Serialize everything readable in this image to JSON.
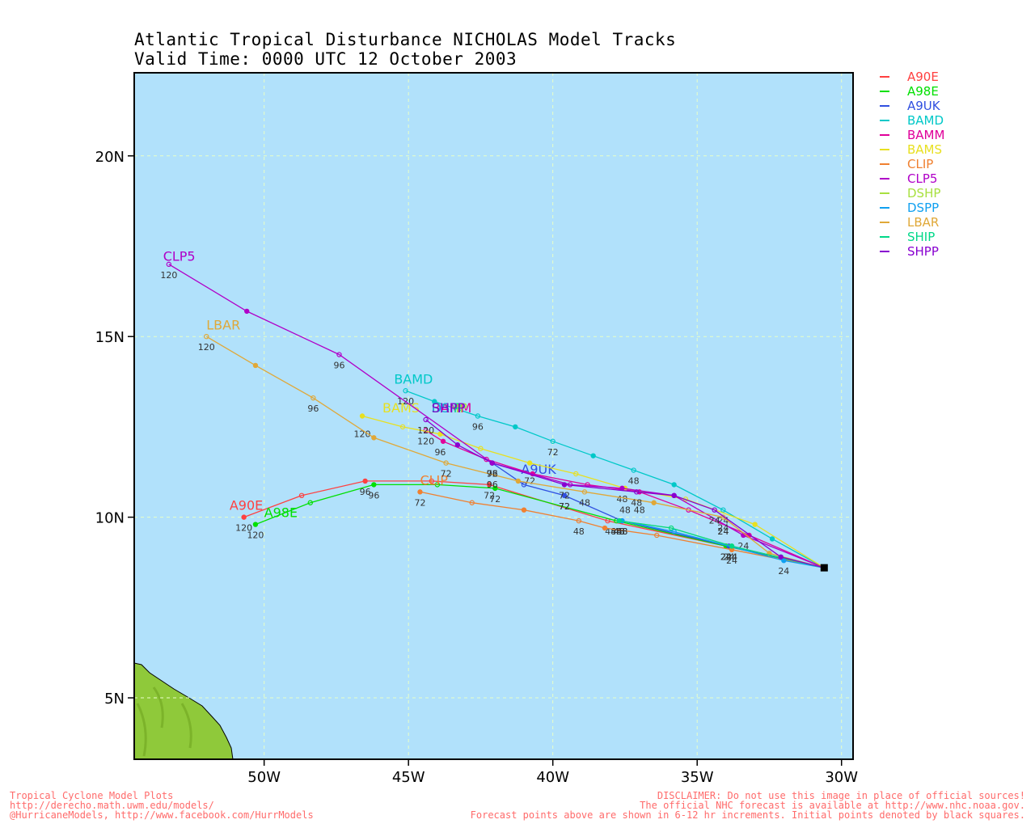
{
  "title": {
    "line1": "Atlantic Tropical Disturbance NICHOLAS Model Tracks",
    "line2": "Valid Time: 0000 UTC 12 October 2003"
  },
  "footer": {
    "left": [
      "Tropical Cyclone Model Plots",
      "http://derecho.math.uwm.edu/models/",
      "@HurricaneModels, http://www.facebook.com/HurrModels"
    ],
    "right": [
      "DISCLAIMER: Do not use this image in place of official sources!",
      "The official NHC forecast is available at http://www.nhc.noaa.gov.",
      "Forecast points above are shown in 6-12 hr increments. Initial points denoted by black squares."
    ]
  },
  "map": {
    "lon_range": [
      -54.5,
      -29.6
    ],
    "lat_range": [
      3.3,
      22.3
    ],
    "ocean_color": "#b1e1fb",
    "land_color": "#8fc93a",
    "x_ticks": [
      {
        "lon": -50,
        "label": "50W"
      },
      {
        "lon": -45,
        "label": "45W"
      },
      {
        "lon": -40,
        "label": "40W"
      },
      {
        "lon": -35,
        "label": "35W"
      },
      {
        "lon": -30,
        "label": "30W"
      }
    ],
    "y_ticks": [
      {
        "lat": 5,
        "label": "5N"
      },
      {
        "lat": 10,
        "label": "10N"
      },
      {
        "lat": 15,
        "label": "15N"
      },
      {
        "lat": 20,
        "label": "20N"
      }
    ],
    "initial_point": {
      "lon": -30.6,
      "lat": 8.6
    }
  },
  "models": [
    {
      "name": "A90E",
      "color": "#ff4040"
    },
    {
      "name": "A98E",
      "color": "#00e000"
    },
    {
      "name": "A9UK",
      "color": "#3050e0"
    },
    {
      "name": "BAMD",
      "color": "#00c8c8"
    },
    {
      "name": "BAMM",
      "color": "#e0009a"
    },
    {
      "name": "BAMS",
      "color": "#e8e020"
    },
    {
      "name": "CLIP",
      "color": "#f08030"
    },
    {
      "name": "CLP5",
      "color": "#b000c8"
    },
    {
      "name": "DSHP",
      "color": "#a8e040"
    },
    {
      "name": "DSPP",
      "color": "#10a0f0"
    },
    {
      "name": "LBAR",
      "color": "#e0a838"
    },
    {
      "name": "SHIP",
      "color": "#00d888"
    },
    {
      "name": "SHPP",
      "color": "#8800d0"
    }
  ],
  "tracks": [
    {
      "model": "A90E",
      "color": "#ff4040",
      "label_at": [
        -51.2,
        10.2
      ],
      "points": [
        [
          -30.6,
          8.6
        ],
        [
          -34.0,
          9.2
        ],
        [
          -38.1,
          9.9
        ],
        [
          -42.2,
          10.9
        ],
        [
          -44.2,
          11.0
        ],
        [
          -46.5,
          11.0
        ],
        [
          -48.7,
          10.6
        ],
        [
          -50.7,
          10.0
        ]
      ],
      "hours": [
        {
          "h": "24",
          "at": [
            -34.0,
            9.2
          ]
        },
        {
          "h": "48",
          "at": [
            -38.0,
            9.9
          ]
        },
        {
          "h": "72",
          "at": [
            -42.2,
            10.9
          ]
        },
        {
          "h": "96",
          "at": [
            -46.5,
            11.0
          ]
        },
        {
          "h": "120",
          "at": [
            -50.7,
            10.0
          ]
        }
      ]
    },
    {
      "model": "A98E",
      "color": "#00e000",
      "label_at": [
        -50.0,
        10.0
      ],
      "points": [
        [
          -30.6,
          8.6
        ],
        [
          -34.0,
          9.2
        ],
        [
          -37.8,
          9.9
        ],
        [
          -42.0,
          10.8
        ],
        [
          -44.0,
          10.9
        ],
        [
          -46.2,
          10.9
        ],
        [
          -48.4,
          10.4
        ],
        [
          -50.3,
          9.8
        ]
      ],
      "hours": [
        {
          "h": "24",
          "at": [
            -34.0,
            9.2
          ]
        },
        {
          "h": "48",
          "at": [
            -37.8,
            9.9
          ]
        },
        {
          "h": "72",
          "at": [
            -42.0,
            10.8
          ]
        },
        {
          "h": "96",
          "at": [
            -46.2,
            10.9
          ]
        },
        {
          "h": "120",
          "at": [
            -50.3,
            9.8
          ]
        }
      ]
    },
    {
      "model": "A9UK",
      "color": "#3050e0",
      "label_at": [
        -41.1,
        11.2
      ],
      "points": [
        [
          -30.6,
          8.6
        ],
        [
          -33.9,
          9.2
        ],
        [
          -37.6,
          9.9
        ],
        [
          -39.6,
          10.6
        ],
        [
          -41.0,
          10.9
        ],
        [
          -42.1,
          11.5
        ]
      ],
      "hours": [
        {
          "h": "24",
          "at": [
            -33.9,
            9.2
          ]
        },
        {
          "h": "48",
          "at": [
            -37.6,
            9.9
          ]
        },
        {
          "h": "72",
          "at": [
            -39.6,
            10.6
          ]
        },
        {
          "h": "96",
          "at": [
            -42.1,
            11.5
          ]
        }
      ]
    },
    {
      "model": "BAMD",
      "color": "#00c8c8",
      "label_at": [
        -45.5,
        13.7
      ],
      "points": [
        [
          -30.6,
          8.6
        ],
        [
          -32.4,
          9.4
        ],
        [
          -34.1,
          10.2
        ],
        [
          -35.8,
          10.9
        ],
        [
          -37.2,
          11.3
        ],
        [
          -38.6,
          11.7
        ],
        [
          -40.0,
          12.1
        ],
        [
          -41.3,
          12.5
        ],
        [
          -42.6,
          12.8
        ],
        [
          -44.1,
          13.2
        ],
        [
          -45.1,
          13.5
        ]
      ],
      "hours": [
        {
          "h": "24",
          "at": [
            -34.1,
            10.2
          ]
        },
        {
          "h": "48",
          "at": [
            -37.2,
            11.3
          ]
        },
        {
          "h": "72",
          "at": [
            -40.0,
            12.1
          ]
        },
        {
          "h": "96",
          "at": [
            -42.6,
            12.8
          ]
        },
        {
          "h": "120",
          "at": [
            -45.1,
            13.5
          ]
        }
      ]
    },
    {
      "model": "BAMM",
      "color": "#e0009a",
      "label_at": [
        -44.2,
        12.9
      ],
      "points": [
        [
          -30.6,
          8.6
        ],
        [
          -33.2,
          9.5
        ],
        [
          -35.3,
          10.2
        ],
        [
          -37.0,
          10.7
        ],
        [
          -38.8,
          10.9
        ],
        [
          -40.7,
          11.2
        ],
        [
          -42.3,
          11.6
        ],
        [
          -43.8,
          12.1
        ],
        [
          -44.4,
          12.4
        ]
      ],
      "hours": [
        {
          "h": "24",
          "at": [
            -34.1,
            9.9
          ]
        },
        {
          "h": "48",
          "at": [
            -37.0,
            10.5
          ]
        },
        {
          "h": "72",
          "at": [
            -39.6,
            10.6
          ]
        },
        {
          "h": "96",
          "at": [
            -42.1,
            11.2
          ]
        },
        {
          "h": "120",
          "at": [
            -44.4,
            12.4
          ]
        }
      ]
    },
    {
      "model": "BAMS",
      "color": "#e8e020",
      "label_at": [
        -45.9,
        12.9
      ],
      "points": [
        [
          -30.6,
          8.6
        ],
        [
          -33.0,
          9.8
        ],
        [
          -35.4,
          10.5
        ],
        [
          -37.5,
          10.8
        ],
        [
          -39.2,
          11.2
        ],
        [
          -40.8,
          11.5
        ],
        [
          -42.5,
          11.9
        ],
        [
          -43.9,
          12.3
        ],
        [
          -45.2,
          12.5
        ],
        [
          -46.6,
          12.8
        ]
      ],
      "hours": [
        {
          "h": "24",
          "at": [
            -34.1,
            9.9
          ]
        },
        {
          "h": "48",
          "at": [
            -37.5,
            10.5
          ]
        },
        {
          "h": "72",
          "at": [
            -40.8,
            11.3
          ]
        },
        {
          "h": "96",
          "at": [
            -43.9,
            12.1
          ]
        },
        {
          "h": "120",
          "at": [
            -46.6,
            12.6
          ]
        }
      ]
    },
    {
      "model": "CLIP",
      "color": "#f08030",
      "label_at": [
        -44.6,
        10.9
      ],
      "points": [
        [
          -30.6,
          8.6
        ],
        [
          -33.8,
          9.1
        ],
        [
          -36.4,
          9.5
        ],
        [
          -38.2,
          9.7
        ],
        [
          -39.1,
          9.9
        ],
        [
          -41.0,
          10.2
        ],
        [
          -42.8,
          10.4
        ],
        [
          -44.6,
          10.7
        ]
      ],
      "hours": [
        {
          "h": "24",
          "at": [
            -33.8,
            9.1
          ]
        },
        {
          "h": "48",
          "at": [
            -39.1,
            9.9
          ]
        },
        {
          "h": "72",
          "at": [
            -44.6,
            10.7
          ]
        }
      ]
    },
    {
      "model": "CLP5",
      "color": "#b000c8",
      "label_at": [
        -53.5,
        17.1
      ],
      "points": [
        [
          -30.6,
          8.6
        ],
        [
          -33.4,
          9.5
        ],
        [
          -35.8,
          10.6
        ],
        [
          -37.6,
          10.8
        ],
        [
          -39.4,
          10.9
        ],
        [
          -42.1,
          11.5
        ],
        [
          -47.4,
          14.5
        ],
        [
          -50.6,
          15.7
        ],
        [
          -53.3,
          17.0
        ]
      ],
      "hours": [
        {
          "h": "24",
          "at": [
            -33.4,
            9.5
          ]
        },
        {
          "h": "48",
          "at": [
            -37.6,
            10.8
          ]
        },
        {
          "h": "72",
          "at": [
            -42.1,
            11.5
          ]
        },
        {
          "h": "96",
          "at": [
            -47.4,
            14.5
          ]
        },
        {
          "h": "120",
          "at": [
            -53.3,
            17.0
          ]
        }
      ]
    },
    {
      "model": "DSHP",
      "color": "#a8e040",
      "label_at": [
        -44.2,
        12.9
      ],
      "points": [
        [
          -30.6,
          8.6
        ],
        [
          -33.8,
          9.2
        ],
        [
          -35.9,
          9.7
        ],
        [
          -37.7,
          9.9
        ]
      ],
      "hours": [
        {
          "h": "24",
          "at": [
            -33.8,
            9.2
          ]
        },
        {
          "h": "48",
          "at": [
            -37.7,
            9.9
          ]
        }
      ]
    },
    {
      "model": "DSPP",
      "color": "#10a0f0",
      "label_at": [
        -44.2,
        12.9
      ],
      "points": [
        [
          -30.6,
          8.6
        ],
        [
          -32.0,
          8.8
        ],
        [
          -35.8,
          9.6
        ],
        [
          -37.6,
          9.9
        ]
      ],
      "hours": [
        {
          "h": "24",
          "at": [
            -32.0,
            8.8
          ]
        },
        {
          "h": "48",
          "at": [
            -37.6,
            9.9
          ]
        }
      ]
    },
    {
      "model": "LBAR",
      "color": "#e0a838",
      "label_at": [
        -52.0,
        15.2
      ],
      "points": [
        [
          -30.6,
          8.6
        ],
        [
          -32.5,
          9.0
        ],
        [
          -34.1,
          10.0
        ],
        [
          -36.5,
          10.4
        ],
        [
          -38.9,
          10.7
        ],
        [
          -41.2,
          11.0
        ],
        [
          -43.7,
          11.5
        ],
        [
          -46.2,
          12.2
        ],
        [
          -48.3,
          13.3
        ],
        [
          -50.3,
          14.2
        ],
        [
          -52.0,
          15.0
        ]
      ],
      "hours": [
        {
          "h": "24",
          "at": [
            -34.1,
            10.0
          ]
        },
        {
          "h": "48",
          "at": [
            -38.9,
            10.7
          ]
        },
        {
          "h": "72",
          "at": [
            -43.7,
            11.5
          ]
        },
        {
          "h": "96",
          "at": [
            -48.3,
            13.3
          ]
        },
        {
          "h": "120",
          "at": [
            -52.0,
            15.0
          ]
        }
      ]
    },
    {
      "model": "SHIP",
      "color": "#00d888",
      "label_at": [
        -44.2,
        12.9
      ],
      "points": [
        [
          -30.6,
          8.6
        ],
        [
          -33.8,
          9.2
        ],
        [
          -35.9,
          9.7
        ],
        [
          -37.7,
          9.9
        ]
      ],
      "hours": [
        {
          "h": "24",
          "at": [
            -33.8,
            9.2
          ]
        },
        {
          "h": "48",
          "at": [
            -37.7,
            9.9
          ]
        }
      ]
    },
    {
      "model": "SHPP",
      "color": "#8800d0",
      "label_at": [
        -44.2,
        12.9
      ],
      "points": [
        [
          -30.6,
          8.6
        ],
        [
          -32.1,
          8.9
        ],
        [
          -34.4,
          10.2
        ],
        [
          -35.8,
          10.6
        ],
        [
          -37.1,
          10.7
        ],
        [
          -39.6,
          10.9
        ],
        [
          -42.1,
          11.5
        ],
        [
          -43.3,
          12.0
        ],
        [
          -44.4,
          12.7
        ]
      ],
      "hours": [
        {
          "h": "24",
          "at": [
            -34.4,
            10.2
          ]
        },
        {
          "h": "48",
          "at": [
            -37.1,
            10.7
          ]
        },
        {
          "h": "72",
          "at": [
            -39.6,
            10.9
          ]
        },
        {
          "h": "96",
          "at": [
            -42.1,
            11.5
          ]
        },
        {
          "h": "120",
          "at": [
            -44.4,
            12.7
          ]
        }
      ]
    }
  ]
}
